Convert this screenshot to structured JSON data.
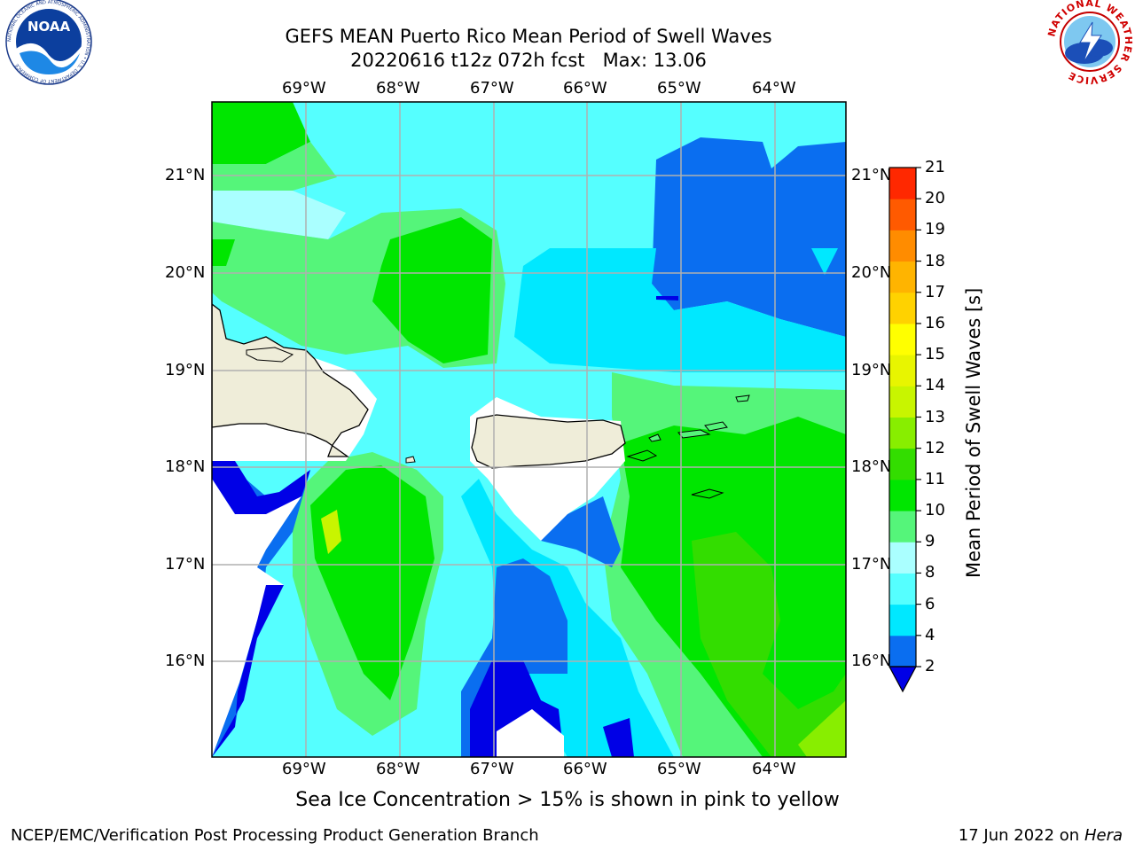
{
  "header": {
    "title_line1": "GEFS MEAN Puerto Rico Mean Period of Swell Waves",
    "title_line2": "20220616 t12z 072h fcst",
    "max_label": "Max: 13.06"
  },
  "logos": {
    "noaa": {
      "text": "NOAA",
      "ring_text": "NATIONAL OCEANIC AND ATMOSPHERIC ADMINISTRATION • U.S. DEPARTMENT OF COMMERCE"
    },
    "nws": {
      "ring_text": "NATIONAL WEATHER SERVICE"
    }
  },
  "map": {
    "lon_ticks": [
      "69°W",
      "68°W",
      "67°W",
      "66°W",
      "65°W",
      "64°W"
    ],
    "lat_ticks": [
      "21°N",
      "20°N",
      "19°N",
      "18°N",
      "17°N",
      "16°N"
    ],
    "land_color": "#efedd9",
    "grid_color": "#b0b0b0"
  },
  "colorbar": {
    "label": "Mean Period of Swell Waves [s]",
    "tick_labels": [
      "2",
      "4",
      "6",
      "8",
      "9",
      "10",
      "11",
      "12",
      "13",
      "14",
      "15",
      "16",
      "17",
      "18",
      "19",
      "20",
      "21"
    ],
    "colors": [
      "#0a6ef0",
      "#00e8ff",
      "#55ffff",
      "#aaffff",
      "#55f57a",
      "#00e600",
      "#33dd00",
      "#88ee00",
      "#c8f500",
      "#e8f500",
      "#ffff00",
      "#ffd200",
      "#ffb400",
      "#ff8c00",
      "#ff5a00",
      "#ff2800",
      "#ff0000"
    ],
    "under_color": "#0000e6"
  },
  "footer": {
    "note": "Sea Ice Concentration > 15% is shown in pink to yellow",
    "left": "NCEP/EMC/Verification Post Processing Product Generation Branch",
    "date": "17 Jun 2022 on",
    "machine": "Hera"
  }
}
